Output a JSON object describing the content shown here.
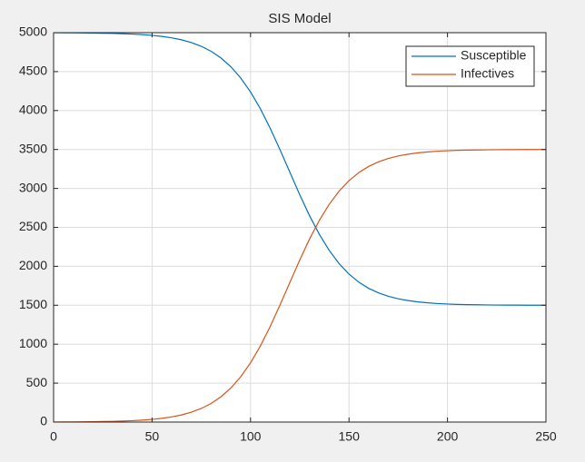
{
  "chart_data": {
    "type": "line",
    "title": "SIS Model",
    "x": [
      0,
      5,
      10,
      15,
      20,
      25,
      30,
      35,
      40,
      45,
      50,
      55,
      60,
      65,
      70,
      75,
      80,
      85,
      90,
      95,
      100,
      105,
      110,
      115,
      120,
      125,
      130,
      135,
      140,
      145,
      150,
      155,
      160,
      165,
      170,
      175,
      180,
      185,
      190,
      195,
      200,
      205,
      210,
      215,
      220,
      225,
      230,
      235,
      240,
      245,
      250
    ],
    "series": [
      {
        "name": "Susceptible",
        "color": "#0072bd",
        "values": [
          4999,
          4998,
          4998,
          4997,
          4995,
          4993,
          4991,
          4987,
          4982,
          4975,
          4966,
          4952,
          4934,
          4908,
          4873,
          4825,
          4761,
          4675,
          4563,
          4419,
          4239,
          4023,
          3772,
          3495,
          3206,
          2918,
          2648,
          2408,
          2202,
          2034,
          1900,
          1796,
          1717,
          1659,
          1615,
          1583,
          1560,
          1543,
          1531,
          1522,
          1516,
          1511,
          1508,
          1506,
          1504,
          1503,
          1502,
          1502,
          1501,
          1501,
          1501
        ]
      },
      {
        "name": "Infectives",
        "color": "#d95319",
        "values": [
          1,
          2,
          2,
          3,
          5,
          7,
          9,
          13,
          18,
          25,
          34,
          48,
          66,
          92,
          127,
          175,
          239,
          325,
          437,
          581,
          761,
          977,
          1228,
          1505,
          1794,
          2082,
          2352,
          2592,
          2798,
          2966,
          3100,
          3204,
          3283,
          3341,
          3385,
          3417,
          3440,
          3457,
          3469,
          3478,
          3484,
          3489,
          3492,
          3494,
          3496,
          3497,
          3498,
          3498,
          3499,
          3499,
          3499
        ]
      }
    ],
    "xlim": [
      0,
      250
    ],
    "xticks": [
      0,
      50,
      100,
      150,
      200,
      250
    ],
    "ylim": [
      0,
      5000
    ],
    "yticks": [
      0,
      500,
      1000,
      1500,
      2000,
      2500,
      3000,
      3500,
      4000,
      4500,
      5000
    ],
    "grid": true,
    "legend": "northeast"
  }
}
